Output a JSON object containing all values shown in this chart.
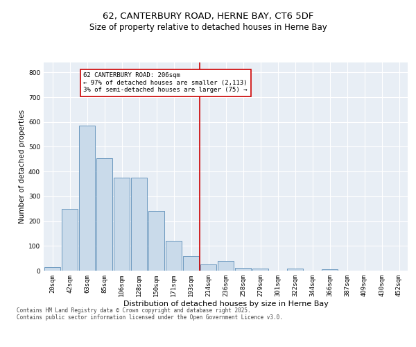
{
  "title": "62, CANTERBURY ROAD, HERNE BAY, CT6 5DF",
  "subtitle": "Size of property relative to detached houses in Herne Bay",
  "xlabel": "Distribution of detached houses by size in Herne Bay",
  "ylabel": "Number of detached properties",
  "categories": [
    "20sqm",
    "42sqm",
    "63sqm",
    "85sqm",
    "106sqm",
    "128sqm",
    "150sqm",
    "171sqm",
    "193sqm",
    "214sqm",
    "236sqm",
    "258sqm",
    "279sqm",
    "301sqm",
    "322sqm",
    "344sqm",
    "366sqm",
    "387sqm",
    "409sqm",
    "430sqm",
    "452sqm"
  ],
  "bar_heights": [
    15,
    248,
    585,
    455,
    375,
    375,
    240,
    120,
    60,
    25,
    38,
    12,
    8,
    0,
    8,
    0,
    5,
    0,
    0,
    0,
    0
  ],
  "bar_color": "#c9daea",
  "bar_edge_color": "#5b8db8",
  "background_color": "#e8eef5",
  "grid_color": "#ffffff",
  "vline_color": "#cc0000",
  "annotation_text": "62 CANTERBURY ROAD: 206sqm\n← 97% of detached houses are smaller (2,113)\n3% of semi-detached houses are larger (75) →",
  "annotation_box_color": "#cc0000",
  "ylim": [
    0,
    840
  ],
  "yticks": [
    0,
    100,
    200,
    300,
    400,
    500,
    600,
    700,
    800
  ],
  "footer_text": "Contains HM Land Registry data © Crown copyright and database right 2025.\nContains public sector information licensed under the Open Government Licence v3.0.",
  "title_fontsize": 9.5,
  "subtitle_fontsize": 8.5,
  "xlabel_fontsize": 8,
  "ylabel_fontsize": 7.5,
  "tick_fontsize": 6.5,
  "annotation_fontsize": 6.5,
  "footer_fontsize": 5.5
}
